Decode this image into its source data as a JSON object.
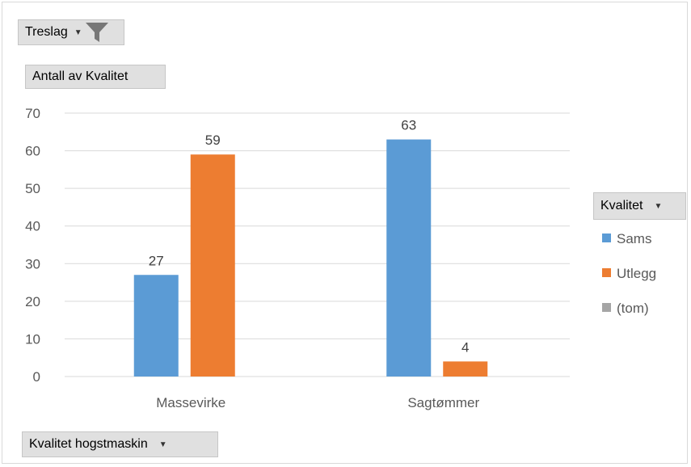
{
  "filter_field": {
    "label": "Treslag"
  },
  "value_field": {
    "label": "Antall av Kvalitet"
  },
  "axis_field": {
    "label": "Kvalitet hogstmaskin"
  },
  "legend_field": {
    "label": "Kvalitet"
  },
  "chart_data": {
    "type": "bar",
    "categories": [
      "Massevirke",
      "Sagtømmer"
    ],
    "series": [
      {
        "name": "Sams",
        "color": "#5b9bd5",
        "values": [
          27,
          63
        ]
      },
      {
        "name": "Utlegg",
        "color": "#ed7d31",
        "values": [
          59,
          4
        ]
      },
      {
        "name": "(tom)",
        "color": "#a5a5a5",
        "values": [
          null,
          null
        ]
      }
    ],
    "ylim": [
      0,
      70
    ],
    "yticks": [
      0,
      10,
      20,
      30,
      40,
      50,
      60,
      70
    ],
    "grid": true,
    "legend": "right"
  }
}
